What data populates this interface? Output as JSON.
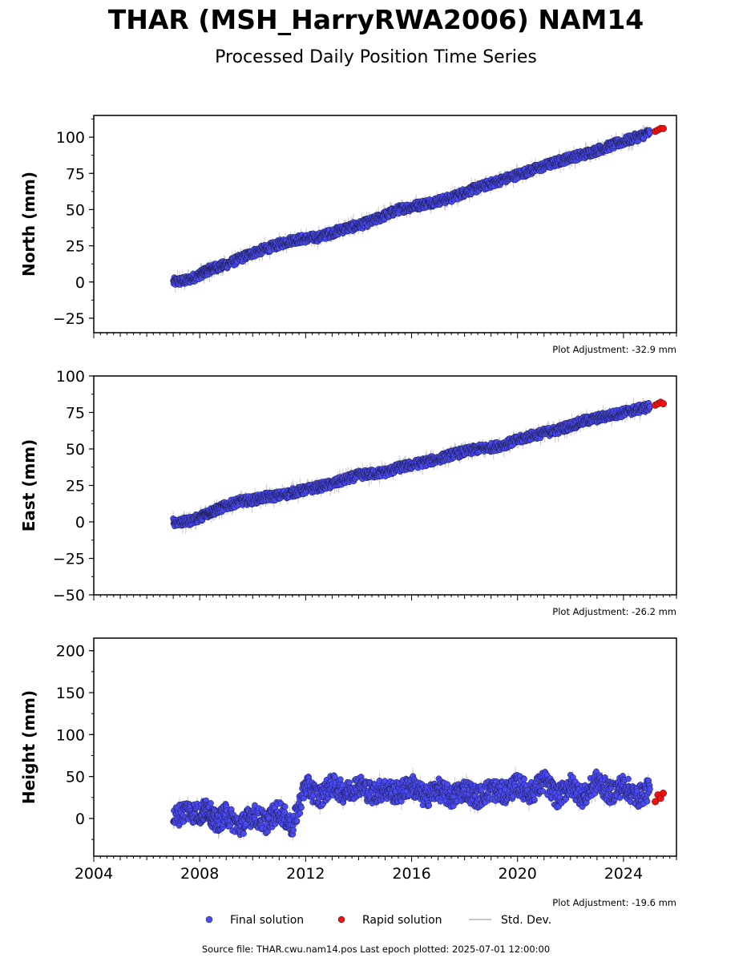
{
  "header": {
    "title": "THAR (MSH_HarryRWA2006) NAM14",
    "subtitle": "Processed Daily Position Time Series"
  },
  "legend": {
    "final": "Final solution",
    "rapid": "Rapid solution",
    "stddev": "Std. Dev."
  },
  "footer": {
    "source": "Source file: THAR.cwu.nam14.pos  Last epoch plotted: 2025-07-01 12:00:00"
  },
  "colors": {
    "final": "#4a4af4",
    "rapid": "#ee1111",
    "stddev": "#c8c8c8",
    "frame": "#000000"
  },
  "chart_data": [
    {
      "type": "scatter",
      "ylabel": "North (mm)",
      "plot_adjustment": "Plot Adjustment: -32.9 mm",
      "xlim": [
        2004.0,
        2026.0
      ],
      "ylim": [
        -35,
        115
      ],
      "yticks": [
        -25,
        0,
        25,
        50,
        75,
        100
      ],
      "ytick_labels": [
        "−25",
        "0",
        "25",
        "50",
        "75",
        "100"
      ],
      "x_tick_labels_shown": false,
      "series": [
        {
          "kind": "final",
          "x": [
            2007.0,
            2007.5,
            2008.0,
            2008.3,
            2008.6,
            2009.0,
            2009.5,
            2010.0,
            2010.5,
            2011.0,
            2011.5,
            2012.0,
            2012.5,
            2013.0,
            2013.5,
            2014.0,
            2014.5,
            2015.0,
            2015.5,
            2016.0,
            2016.5,
            2017.0,
            2017.5,
            2018.0,
            2018.5,
            2019.0,
            2019.5,
            2020.0,
            2020.5,
            2021.0,
            2021.5,
            2022.0,
            2022.5,
            2023.0,
            2023.5,
            2024.0,
            2024.5,
            2025.0
          ],
          "y": [
            0,
            1,
            5,
            8,
            10,
            12,
            16,
            20,
            23,
            26,
            29,
            30,
            31,
            34,
            37,
            39,
            42,
            46,
            50,
            52,
            54,
            56,
            58,
            62,
            65,
            68,
            71,
            74,
            77,
            80,
            83,
            86,
            88,
            91,
            94,
            97,
            100,
            103
          ]
        },
        {
          "kind": "rapid",
          "x": [
            2025.2,
            2025.3,
            2025.4,
            2025.5
          ],
          "y": [
            104,
            105,
            106,
            106
          ]
        }
      ]
    },
    {
      "type": "scatter",
      "ylabel": "East (mm)",
      "plot_adjustment": "Plot Adjustment: -26.2 mm",
      "xlim": [
        2004.0,
        2026.0
      ],
      "ylim": [
        -50,
        100
      ],
      "yticks": [
        -50,
        -25,
        0,
        25,
        50,
        75,
        100
      ],
      "ytick_labels": [
        "−50",
        "−25",
        "0",
        "25",
        "50",
        "75",
        "100"
      ],
      "x_tick_labels_shown": false,
      "series": [
        {
          "kind": "final",
          "x": [
            2007.0,
            2007.5,
            2008.0,
            2008.3,
            2008.6,
            2009.0,
            2009.5,
            2010.0,
            2010.5,
            2011.0,
            2011.5,
            2012.0,
            2012.5,
            2013.0,
            2013.5,
            2014.0,
            2014.5,
            2015.0,
            2015.5,
            2016.0,
            2016.5,
            2017.0,
            2017.5,
            2018.0,
            2018.5,
            2019.0,
            2019.5,
            2020.0,
            2020.5,
            2021.0,
            2021.5,
            2022.0,
            2022.5,
            2023.0,
            2023.5,
            2024.0,
            2024.5,
            2025.0
          ],
          "y": [
            0,
            0,
            3,
            6,
            8,
            11,
            14,
            15,
            17,
            18,
            20,
            22,
            24,
            26,
            29,
            32,
            33,
            34,
            37,
            39,
            41,
            43,
            46,
            48,
            50,
            51,
            53,
            56,
            59,
            61,
            63,
            66,
            69,
            71,
            73,
            75,
            77,
            79
          ]
        },
        {
          "kind": "rapid",
          "x": [
            2025.2,
            2025.3,
            2025.4,
            2025.5
          ],
          "y": [
            80,
            81,
            82,
            81
          ]
        }
      ]
    },
    {
      "type": "scatter",
      "ylabel": "Height (mm)",
      "plot_adjustment": "Plot Adjustment: -19.6 mm",
      "xlim": [
        2004.0,
        2026.0
      ],
      "ylim": [
        -45,
        215
      ],
      "yticks": [
        0,
        50,
        100,
        150,
        200
      ],
      "ytick_labels": [
        "0",
        "50",
        "100",
        "150",
        "200"
      ],
      "x_tick_labels_shown": true,
      "xticks": [
        2004,
        2008,
        2012,
        2016,
        2020,
        2024
      ],
      "xtick_labels": [
        "2004",
        "2008",
        "2012",
        "2016",
        "2020",
        "2024"
      ],
      "series": [
        {
          "kind": "final",
          "x": [
            2007.0,
            2007.5,
            2008.0,
            2008.3,
            2008.6,
            2009.0,
            2009.5,
            2010.0,
            2010.5,
            2011.0,
            2011.5,
            2012.0,
            2012.5,
            2013.0,
            2013.5,
            2014.0,
            2014.5,
            2015.0,
            2015.5,
            2016.0,
            2016.5,
            2017.0,
            2017.5,
            2018.0,
            2018.5,
            2019.0,
            2019.5,
            2020.0,
            2020.5,
            2021.0,
            2021.5,
            2022.0,
            2022.5,
            2023.0,
            2023.5,
            2024.0,
            2024.5,
            2025.0
          ],
          "y": [
            0,
            10,
            5,
            12,
            -5,
            5,
            -10,
            5,
            -5,
            10,
            -10,
            40,
            25,
            40,
            30,
            40,
            30,
            35,
            30,
            40,
            25,
            35,
            25,
            35,
            25,
            35,
            30,
            40,
            30,
            45,
            25,
            40,
            25,
            45,
            30,
            40,
            25,
            35
          ]
        },
        {
          "kind": "rapid",
          "x": [
            2025.2,
            2025.3,
            2025.4,
            2025.5
          ],
          "y": [
            20,
            28,
            24,
            30
          ]
        }
      ]
    }
  ]
}
